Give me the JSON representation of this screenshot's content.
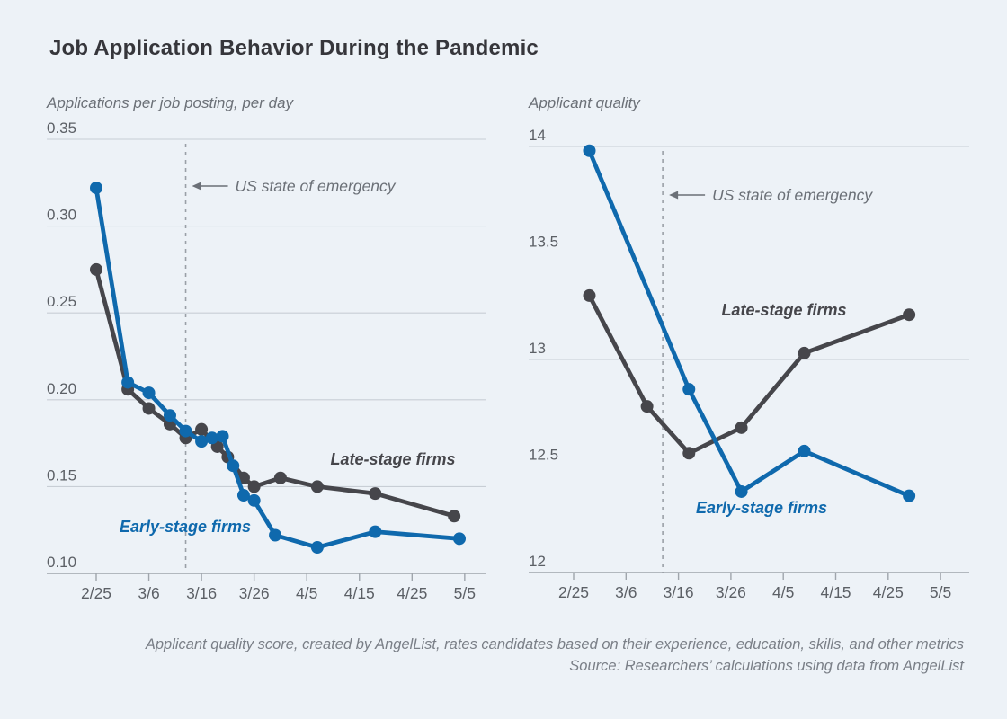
{
  "figure": {
    "title": "Job Application Behavior During the Pandemic",
    "event_annotation": "US state of emergency",
    "footnotes": [
      "Applicant quality score, created by AngelList, rates candidates based on their experience, education, skills, and other metrics",
      "Source: Researchers’ calculations using data from AngelList"
    ]
  },
  "colors": {
    "background": "#edf2f7",
    "early_stage_blue": "#0f69ad",
    "late_stage_gray": "#46464b",
    "gridline": "#c8ced5",
    "axis_line": "#9fa5ac",
    "event_line": "#9aa0a7",
    "tick_text": "#5c6066",
    "annotation_text": "#6b7077",
    "title_text": "#36363b",
    "footnote_text": "#7a7f87"
  },
  "chart_data": [
    {
      "type": "line",
      "title": "Applications per job posting, per day",
      "x_tick_labels": [
        "2/25",
        "3/6",
        "3/16",
        "3/26",
        "4/5",
        "4/15",
        "4/25",
        "5/5"
      ],
      "ytick_values": [
        0.1,
        0.15,
        0.2,
        0.25,
        0.3,
        0.35
      ],
      "ytick_labels": [
        "0.10",
        "0.15",
        "0.20",
        "0.25",
        "0.30",
        "0.35"
      ],
      "ylim": [
        0.1,
        0.35
      ],
      "grid": true,
      "legend_position": "inline-labels",
      "event_date": "3/13",
      "series": [
        {
          "name": "Late-stage firms",
          "color_key": "late_stage_gray",
          "points": [
            [
              "2/25",
              0.275
            ],
            [
              "3/2",
              0.206
            ],
            [
              "3/6",
              0.195
            ],
            [
              "3/10",
              0.186
            ],
            [
              "3/13",
              0.178
            ],
            [
              "3/16",
              0.183
            ],
            [
              "3/19",
              0.173
            ],
            [
              "3/21",
              0.167
            ],
            [
              "3/24",
              0.155
            ],
            [
              "3/26",
              0.15
            ],
            [
              "3/31",
              0.155
            ],
            [
              "4/7",
              0.15
            ],
            [
              "4/18",
              0.146
            ],
            [
              "5/3",
              0.133
            ]
          ]
        },
        {
          "name": "Early-stage firms",
          "color_key": "early_stage_blue",
          "points": [
            [
              "2/25",
              0.322
            ],
            [
              "3/2",
              0.21
            ],
            [
              "3/6",
              0.204
            ],
            [
              "3/10",
              0.191
            ],
            [
              "3/13",
              0.182
            ],
            [
              "3/16",
              0.176
            ],
            [
              "3/18",
              0.178
            ],
            [
              "3/20",
              0.179
            ],
            [
              "3/22",
              0.162
            ],
            [
              "3/24",
              0.145
            ],
            [
              "3/26",
              0.142
            ],
            [
              "3/30",
              0.122
            ],
            [
              "4/7",
              0.115
            ],
            [
              "4/18",
              0.124
            ],
            [
              "5/4",
              0.12
            ]
          ]
        }
      ]
    },
    {
      "type": "line",
      "title": "Applicant quality",
      "x_tick_labels": [
        "2/25",
        "3/6",
        "3/16",
        "3/26",
        "4/5",
        "4/15",
        "4/25",
        "5/5"
      ],
      "ytick_values": [
        12,
        12.5,
        13,
        13.5,
        14
      ],
      "ytick_labels": [
        "12",
        "12.5",
        "13",
        "13.5",
        "14"
      ],
      "ylim": [
        12,
        14
      ],
      "grid": true,
      "legend_position": "inline-labels",
      "event_date": "3/13",
      "series": [
        {
          "name": "Late-stage firms",
          "color_key": "late_stage_gray",
          "points": [
            [
              "2/28",
              13.3
            ],
            [
              "3/10",
              12.78
            ],
            [
              "3/18",
              12.56
            ],
            [
              "3/28",
              12.68
            ],
            [
              "4/9",
              13.03
            ],
            [
              "4/29",
              13.21
            ]
          ]
        },
        {
          "name": "Early-stage firms",
          "color_key": "early_stage_blue",
          "points": [
            [
              "2/28",
              13.98
            ],
            [
              "3/18",
              12.86
            ],
            [
              "3/28",
              12.38
            ],
            [
              "4/9",
              12.57
            ],
            [
              "4/29",
              12.36
            ]
          ]
        }
      ]
    }
  ]
}
